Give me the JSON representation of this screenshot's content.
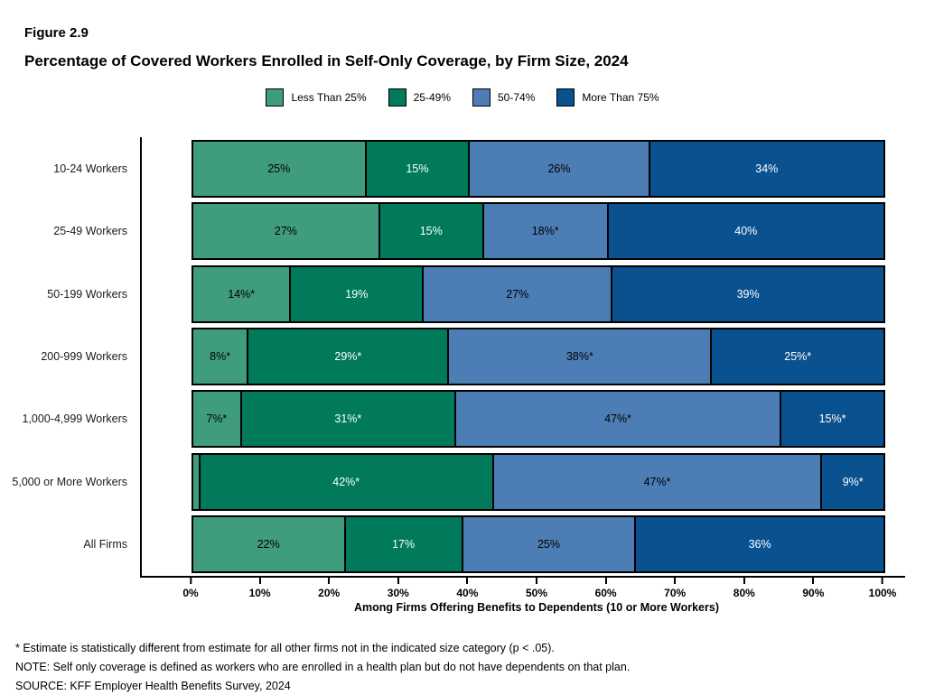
{
  "figure_label": "Figure 2.9",
  "title": "Percentage of Covered Workers Enrolled in Self-Only Coverage, by Firm Size, 2024",
  "legend": [
    {
      "label": "Less Than 25%",
      "color": "#3f9d7e"
    },
    {
      "label": "25-49%",
      "color": "#007a5a"
    },
    {
      "label": "50-74%",
      "color": "#4d7db5"
    },
    {
      "label": "More Than 75%",
      "color": "#0a5190"
    }
  ],
  "chart_data": {
    "type": "bar",
    "orientation": "horizontal",
    "stacked": true,
    "title": "Percentage of Covered Workers Enrolled in Self-Only Coverage, by Firm Size, 2024",
    "categories": [
      "10-24 Workers",
      "25-49 Workers",
      "50-199 Workers",
      "200-999 Workers",
      "1,000-4,999 Workers",
      "5,000 or More Workers",
      "All Firms"
    ],
    "series": [
      {
        "name": "Less Than 25%",
        "color": "#3f9d7e",
        "text_color": "#000000",
        "values": [
          25,
          27,
          14,
          8,
          7,
          1,
          22
        ],
        "labels": [
          "25%",
          "27%",
          "14%*",
          "8%*",
          "7%*",
          "",
          "22%"
        ]
      },
      {
        "name": "25-49%",
        "color": "#007a5a",
        "text_color": "#ffffff",
        "values": [
          15,
          15,
          19,
          29,
          31,
          42,
          17
        ],
        "labels": [
          "15%",
          "15%",
          "19%",
          "29%*",
          "31%*",
          "42%*",
          "17%"
        ]
      },
      {
        "name": "50-74%",
        "color": "#4d7db5",
        "text_color": "#000000",
        "values": [
          26,
          18,
          27,
          38,
          47,
          47,
          25
        ],
        "labels": [
          "26%",
          "18%*",
          "27%",
          "38%*",
          "47%*",
          "47%*",
          "25%"
        ]
      },
      {
        "name": "More Than 75%",
        "color": "#0a5190",
        "text_color": "#ffffff",
        "values": [
          34,
          40,
          39,
          25,
          15,
          9,
          36
        ],
        "labels": [
          "34%",
          "40%",
          "39%",
          "25%*",
          "15%*",
          "9%*",
          "36%"
        ]
      }
    ],
    "x_ticks": [
      "0%",
      "10%",
      "20%",
      "30%",
      "40%",
      "50%",
      "60%",
      "70%",
      "80%",
      "90%",
      "100%"
    ],
    "xlabel": "Among Firms Offering Benefits to Dependents (10 or More Workers)",
    "xlim": [
      0,
      100
    ],
    "legend_position": "top",
    "grid": false
  },
  "footnotes": [
    "* Estimate is statistically different from estimate for all other firms not in the indicated size category (p < .05).",
    "NOTE: Self only coverage is defined as workers who are enrolled in a health plan but do not have dependents on that plan.",
    "SOURCE: KFF Employer Health Benefits Survey, 2024"
  ]
}
